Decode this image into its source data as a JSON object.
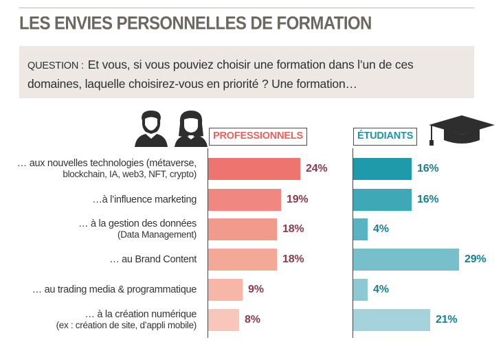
{
  "title": "LES ENVIES PERSONNELLES DE FORMATION",
  "question": {
    "label": "QUESTION :",
    "text": "Et vous, si vous pouviez choisir une formation dans l’un de ces domaines, laquelle choisirez-vous en priorité ? Une formation…"
  },
  "chart_data": {
    "type": "bar",
    "orientation": "horizontal",
    "categories": [
      "… aux nouvelles technologies (métaverse, blockchain, IA, web3, NFT, crypto)",
      "…à l’influence marketing",
      "… à la gestion des données (Data Management)",
      "… au Brand Content",
      "… au trading media & programmatique",
      "… à la création numérique (ex : création de site, d’appli mobile)"
    ],
    "category_lines": [
      [
        "… aux nouvelles technologies (métaverse,",
        "blockchain, IA, web3, NFT, crypto)"
      ],
      [
        "…à l’influence marketing"
      ],
      [
        "… à la gestion des données",
        "(Data Management)"
      ],
      [
        "… au Brand Content"
      ],
      [
        "… au trading media & programmatique"
      ],
      [
        "… à la création numérique",
        "(ex : création de site, d’appli mobile)"
      ]
    ],
    "series": [
      {
        "name": "PROFESSIONNELS",
        "values": [
          24,
          19,
          18,
          18,
          9,
          8
        ],
        "labels": [
          "24%",
          "19%",
          "18%",
          "18%",
          "9%",
          "8%"
        ],
        "colors": [
          "#ee7470",
          "#f08780",
          "#f29a8c",
          "#f4a898",
          "#f6b6a8",
          "#f9c6bb"
        ]
      },
      {
        "name": "ÉTUDIANTS",
        "values": [
          16,
          16,
          4,
          29,
          4,
          21
        ],
        "labels": [
          "16%",
          "16%",
          "4%",
          "29%",
          "4%",
          "21%"
        ],
        "colors": [
          "#1f9aaa",
          "#3ea8b7",
          "#5ab3c1",
          "#77bfcb",
          "#8ec9d3",
          "#a6d3db"
        ]
      }
    ],
    "unit": "%"
  }
}
